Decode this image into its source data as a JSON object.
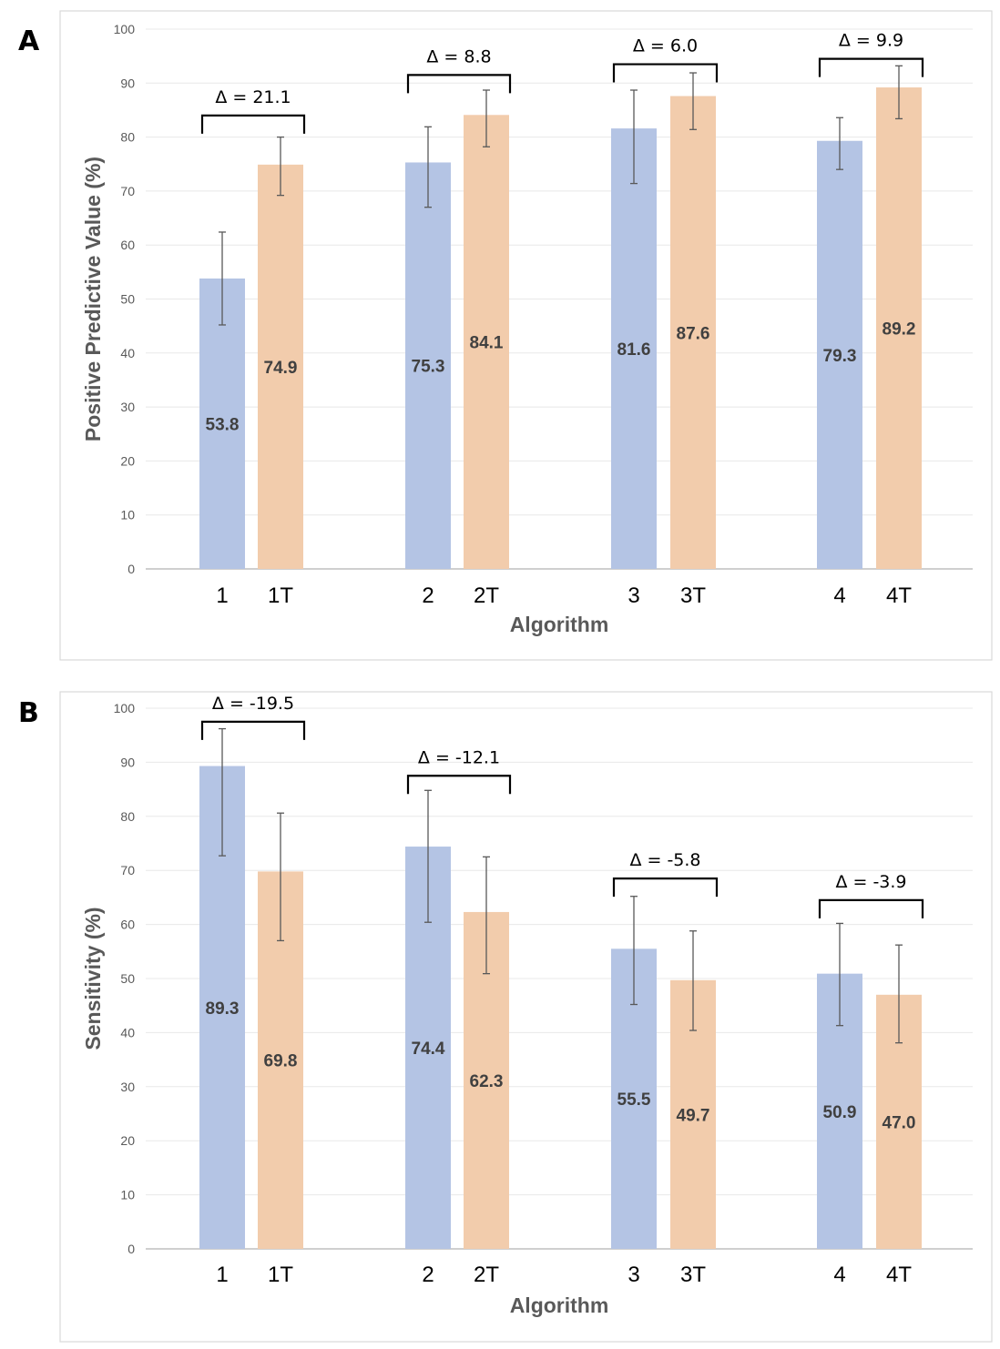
{
  "panel_letters": [
    "A",
    "B"
  ],
  "colors": {
    "series_a": "#b4c4e4",
    "series_b": "#f2ccac"
  },
  "chart_data": [
    {
      "type": "bar",
      "panel": "A",
      "ylabel": "Positive Predictive Value (%)",
      "xlabel": "Algorithm",
      "ylim": [
        0,
        100
      ],
      "yticks": [
        0,
        10,
        20,
        30,
        40,
        50,
        60,
        70,
        80,
        90,
        100
      ],
      "grid": true,
      "categories": [
        "1",
        "1T",
        "2",
        "2T",
        "3",
        "3T",
        "4",
        "4T"
      ],
      "values": [
        53.8,
        74.9,
        75.3,
        84.1,
        81.6,
        87.6,
        79.3,
        89.2
      ],
      "value_labels": [
        "53.8",
        "74.9",
        "75.3",
        "84.1",
        "81.6",
        "87.6",
        "79.3",
        "89.2"
      ],
      "error_low": [
        45.2,
        69.2,
        67.0,
        78.2,
        71.4,
        81.4,
        74.0,
        83.4
      ],
      "error_high": [
        62.4,
        80.0,
        81.9,
        88.7,
        88.7,
        91.9,
        83.6,
        93.2
      ],
      "bar_colors": [
        "series_a",
        "series_b",
        "series_a",
        "series_b",
        "series_a",
        "series_b",
        "series_a",
        "series_b"
      ],
      "deltas": [
        "Δ = 21.1",
        "Δ = 8.8",
        "Δ = 6.0",
        "Δ = 9.9"
      ],
      "bracket_levels": [
        84,
        91.5,
        93.5,
        94.5
      ]
    },
    {
      "type": "bar",
      "panel": "B",
      "ylabel": "Sensitivity (%)",
      "xlabel": "Algorithm",
      "ylim": [
        0,
        100
      ],
      "yticks": [
        0,
        10,
        20,
        30,
        40,
        50,
        60,
        70,
        80,
        90,
        100
      ],
      "grid": true,
      "categories": [
        "1",
        "1T",
        "2",
        "2T",
        "3",
        "3T",
        "4",
        "4T"
      ],
      "values": [
        89.3,
        69.8,
        74.4,
        62.3,
        55.5,
        49.7,
        50.9,
        47.0
      ],
      "value_labels": [
        "89.3",
        "69.8",
        "74.4",
        "62.3",
        "55.5",
        "49.7",
        "50.9",
        "47.0"
      ],
      "error_low": [
        72.7,
        57.0,
        60.4,
        50.9,
        45.2,
        40.4,
        41.3,
        38.1
      ],
      "error_high": [
        96.2,
        80.6,
        84.8,
        72.5,
        65.2,
        58.8,
        60.2,
        56.2
      ],
      "bar_colors": [
        "series_a",
        "series_b",
        "series_a",
        "series_b",
        "series_a",
        "series_b",
        "series_a",
        "series_b"
      ],
      "deltas": [
        "Δ = -19.5",
        "Δ = -12.1",
        "Δ = -5.8",
        "Δ = -3.9"
      ],
      "bracket_levels": [
        97.5,
        87.5,
        68.5,
        64.5
      ]
    }
  ]
}
